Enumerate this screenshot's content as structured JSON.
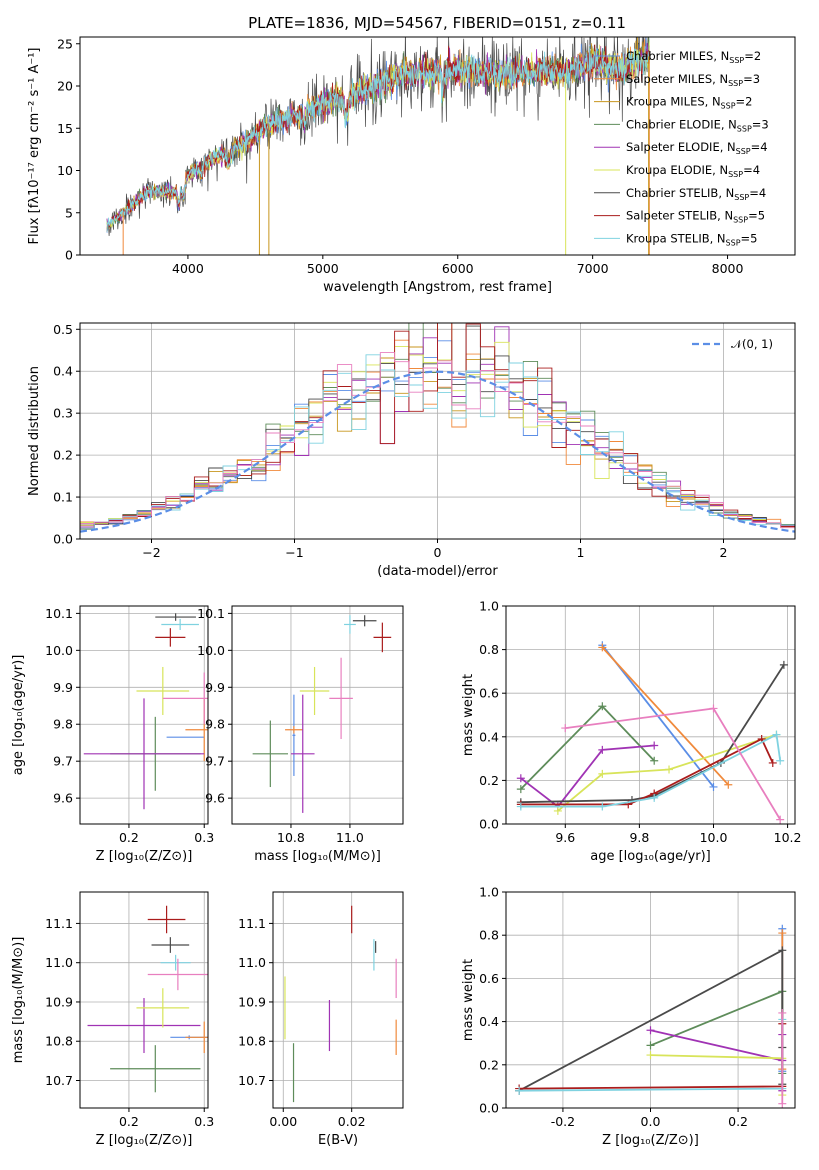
{
  "title": "PLATE=1836, MJD=54567, FIBERID=0151, z=0.11",
  "colors": [
    "#5b8ee6",
    "#f08a3c",
    "#c8961e",
    "#5e8c5a",
    "#a033b4",
    "#d8e45a",
    "#4a4a4a",
    "#aa1c1c",
    "#7fd2e0",
    "#e87fbf"
  ],
  "models": [
    {
      "lab": "Chabrier MILES, N",
      "sub": "SSP",
      "val": "=2"
    },
    {
      "lab": "Salpeter MILES, N",
      "sub": "SSP",
      "val": "=3"
    },
    {
      "lab": "Kroupa MILES, N",
      "sub": "SSP",
      "val": "=2"
    },
    {
      "lab": "Chabrier ELODIE, N",
      "sub": "SSP",
      "val": "=3"
    },
    {
      "lab": "Salpeter ELODIE, N",
      "sub": "SSP",
      "val": "=4"
    },
    {
      "lab": "Kroupa ELODIE, N",
      "sub": "SSP",
      "val": "=4"
    },
    {
      "lab": "Chabrier STELIB, N",
      "sub": "SSP",
      "val": "=4"
    },
    {
      "lab": "Salpeter STELIB, N",
      "sub": "SSP",
      "val": "=5"
    },
    {
      "lab": "Kroupa STELIB, N",
      "sub": "SSP",
      "val": "=5"
    }
  ],
  "chart_data": [
    {
      "type": "line",
      "name": "spectrum",
      "xlabel": "wavelength [Angstrom, rest frame]",
      "ylabel": "Flux [fλ10⁻¹⁷ erg cm⁻² s⁻¹ A⁻¹]",
      "xlim": [
        3200,
        8500
      ],
      "ylim": [
        0,
        25.8
      ],
      "xticks": [
        4000,
        5000,
        6000,
        7000,
        8000
      ],
      "yticks": [
        0,
        5,
        10,
        15,
        20,
        25
      ],
      "continuum": {
        "x": [
          3400,
          3500,
          3700,
          3900,
          4000,
          4200,
          4400,
          4600,
          4800,
          5000,
          5200,
          5400,
          5600,
          5800,
          6000,
          6200,
          6400,
          6600,
          6800,
          7000,
          7200,
          7400
        ],
        "y": [
          3.5,
          4.8,
          7.5,
          7.5,
          9.5,
          11.5,
          13.0,
          15.5,
          16.5,
          18.0,
          19.0,
          20.0,
          21.5,
          21.5,
          22.0,
          21.5,
          21.5,
          22.0,
          21.5,
          23.0,
          22.0,
          23.5
        ]
      }
    },
    {
      "type": "histogram",
      "name": "residuals",
      "xlabel": "(data-model)/error",
      "ylabel": "Normed distribution",
      "xlim": [
        -2.5,
        2.5
      ],
      "ylim": [
        0,
        0.515
      ],
      "xticks": [
        -2,
        -1,
        0,
        1,
        2
      ],
      "yticks": [
        0.0,
        0.1,
        0.2,
        0.3,
        0.4,
        0.5
      ],
      "legend": "𝒩(0, 1)",
      "bin_width": 0.1
    },
    {
      "type": "scatter",
      "name": "age-vs-Z",
      "xlabel": "Z [log₁₀(Z/Z⊙)]",
      "ylabel": "age  [log₁₀(age/yr)]",
      "xlim": [
        0.135,
        0.305
      ],
      "ylim": [
        9.53,
        10.12
      ],
      "xticks": [
        0.2,
        0.3
      ],
      "yticks": [
        9.6,
        9.7,
        9.8,
        9.9,
        10.0,
        10.1
      ],
      "points": [
        {
          "m": 0,
          "x": 0.275,
          "y": 9.765,
          "ex": 0.025,
          "ey": 0.0
        },
        {
          "m": 1,
          "x": 0.3,
          "y": 9.785,
          "ex": 0.025,
          "ey": 0.085
        },
        {
          "m": 3,
          "x": 0.235,
          "y": 9.72,
          "ex": 0.06,
          "ey": 0.1
        },
        {
          "m": 4,
          "x": 0.22,
          "y": 9.72,
          "ex": 0.08,
          "ey": 0.15
        },
        {
          "m": 5,
          "x": 0.245,
          "y": 9.89,
          "ex": 0.035,
          "ey": 0.065
        },
        {
          "m": 6,
          "x": 0.262,
          "y": 10.09,
          "ex": 0.027,
          "ey": 0.01
        },
        {
          "m": 7,
          "x": 0.255,
          "y": 10.035,
          "ex": 0.02,
          "ey": 0.025
        },
        {
          "m": 8,
          "x": 0.268,
          "y": 10.07,
          "ex": 0.025,
          "ey": 0.015
        },
        {
          "m": 9,
          "x": 0.3,
          "y": 9.87,
          "ex": 0.055,
          "ey": 0.07
        }
      ]
    },
    {
      "type": "scatter",
      "name": "age-vs-mass",
      "xlabel": "mass [log₁₀(M/M⊙)]",
      "ylabel": "",
      "xlim": [
        10.6,
        11.18
      ],
      "ylim": [
        9.53,
        10.12
      ],
      "xticks": [
        10.8,
        11.0
      ],
      "yticks": [
        9.6,
        9.7,
        9.8,
        9.9,
        10.0,
        10.1
      ],
      "points": [
        {
          "m": 0,
          "x": 10.81,
          "y": 9.77,
          "ex": 0.005,
          "ey": 0.11
        },
        {
          "m": 1,
          "x": 10.81,
          "y": 9.785,
          "ex": 0.03,
          "ey": 0.01
        },
        {
          "m": 3,
          "x": 10.73,
          "y": 9.72,
          "ex": 0.06,
          "ey": 0.09
        },
        {
          "m": 4,
          "x": 10.84,
          "y": 9.72,
          "ex": 0.04,
          "ey": 0.16
        },
        {
          "m": 5,
          "x": 10.88,
          "y": 9.89,
          "ex": 0.05,
          "ey": 0.065
        },
        {
          "m": 6,
          "x": 11.05,
          "y": 10.08,
          "ex": 0.04,
          "ey": 0.015
        },
        {
          "m": 7,
          "x": 11.11,
          "y": 10.035,
          "ex": 0.03,
          "ey": 0.04
        },
        {
          "m": 8,
          "x": 11.0,
          "y": 10.07,
          "ex": 0.02,
          "ey": 0.025
        },
        {
          "m": 9,
          "x": 10.97,
          "y": 9.87,
          "ex": 0.04,
          "ey": 0.11
        }
      ]
    },
    {
      "type": "line",
      "name": "weight-vs-age",
      "xlabel": "age  [log₁₀(age/yr)]",
      "ylabel": "mass weight",
      "xlim": [
        9.44,
        10.22
      ],
      "ylim": [
        0,
        1
      ],
      "xticks": [
        9.6,
        9.8,
        10.0,
        10.2
      ],
      "yticks": [
        0.0,
        0.2,
        0.4,
        0.6,
        0.8,
        1.0
      ],
      "series": [
        {
          "m": 0,
          "x": [
            9.7,
            10.0
          ],
          "y": [
            0.82,
            0.17
          ]
        },
        {
          "m": 1,
          "x": [
            9.7,
            10.04
          ],
          "y": [
            0.81,
            0.18
          ]
        },
        {
          "m": 3,
          "x": [
            9.48,
            9.7,
            9.84
          ],
          "y": [
            0.16,
            0.54,
            0.29
          ]
        },
        {
          "m": 4,
          "x": [
            9.48,
            9.58,
            9.7,
            9.84
          ],
          "y": [
            0.21,
            0.08,
            0.34,
            0.36
          ]
        },
        {
          "m": 5,
          "x": [
            9.58,
            9.7,
            9.88,
            10.17
          ],
          "y": [
            0.06,
            0.23,
            0.25,
            0.41
          ]
        },
        {
          "m": 6,
          "x": [
            9.48,
            9.78,
            9.84,
            10.02,
            10.19
          ],
          "y": [
            0.1,
            0.11,
            0.13,
            0.28,
            0.73
          ]
        },
        {
          "m": 7,
          "x": [
            9.48,
            9.77,
            9.84,
            10.13,
            10.16
          ],
          "y": [
            0.09,
            0.09,
            0.14,
            0.39,
            0.28
          ]
        },
        {
          "m": 8,
          "x": [
            9.48,
            9.7,
            9.84,
            10.17,
            10.18
          ],
          "y": [
            0.08,
            0.08,
            0.12,
            0.41,
            0.29
          ]
        },
        {
          "m": 9,
          "x": [
            9.6,
            10.0,
            10.18
          ],
          "y": [
            0.44,
            0.53,
            0.02
          ]
        }
      ]
    },
    {
      "type": "scatter",
      "name": "mass-vs-Z",
      "xlabel": "Z [log₁₀(Z/Z⊙)]",
      "ylabel": "mass [log₁₀(M/M⊙)]",
      "xlim": [
        0.135,
        0.305
      ],
      "ylim": [
        10.63,
        11.18
      ],
      "xticks": [
        0.2,
        0.3
      ],
      "yticks": [
        10.7,
        10.8,
        10.9,
        11.0,
        11.1
      ],
      "points": [
        {
          "m": 0,
          "x": 0.28,
          "y": 10.81,
          "ex": 0.025,
          "ey": 0.005
        },
        {
          "m": 1,
          "x": 0.3,
          "y": 10.81,
          "ex": 0.025,
          "ey": 0.04
        },
        {
          "m": 3,
          "x": 0.235,
          "y": 10.73,
          "ex": 0.06,
          "ey": 0.06
        },
        {
          "m": 4,
          "x": 0.22,
          "y": 10.84,
          "ex": 0.075,
          "ey": 0.07
        },
        {
          "m": 5,
          "x": 0.245,
          "y": 10.885,
          "ex": 0.035,
          "ey": 0.05
        },
        {
          "m": 6,
          "x": 0.255,
          "y": 11.045,
          "ex": 0.025,
          "ey": 0.02
        },
        {
          "m": 7,
          "x": 0.25,
          "y": 11.11,
          "ex": 0.025,
          "ey": 0.035
        },
        {
          "m": 8,
          "x": 0.262,
          "y": 11.0,
          "ex": 0.02,
          "ey": 0.02
        },
        {
          "m": 9,
          "x": 0.265,
          "y": 10.97,
          "ex": 0.04,
          "ey": 0.04
        }
      ]
    },
    {
      "type": "scatter",
      "name": "mass-vs-EBV",
      "xlabel": "E(B-V)",
      "ylabel": "",
      "xlim": [
        -0.003,
        0.035
      ],
      "ylim": [
        10.63,
        11.18
      ],
      "xticks": [
        0.0,
        0.02
      ],
      "yticks": [
        10.7,
        10.8,
        10.9,
        11.0,
        11.1
      ],
      "points": [
        {
          "m": 1,
          "x": 0.033,
          "y": 10.81,
          "ex": 0,
          "ey": 0.045
        },
        {
          "m": 3,
          "x": 0.003,
          "y": 10.72,
          "ex": 0,
          "ey": 0.075
        },
        {
          "m": 4,
          "x": 0.0135,
          "y": 10.84,
          "ex": 0,
          "ey": 0.065
        },
        {
          "m": 5,
          "x": 0.0005,
          "y": 10.885,
          "ex": 0,
          "ey": 0.08
        },
        {
          "m": 7,
          "x": 0.02,
          "y": 11.11,
          "ex": 0,
          "ey": 0.035
        },
        {
          "m": 8,
          "x": 0.0265,
          "y": 11.02,
          "ex": 0,
          "ey": 0.04
        },
        {
          "m": 6,
          "x": 0.027,
          "y": 11.04,
          "ex": 0,
          "ey": 0.015
        },
        {
          "m": 9,
          "x": 0.033,
          "y": 10.96,
          "ex": 0,
          "ey": 0.05
        }
      ]
    },
    {
      "type": "line",
      "name": "weight-vs-Z",
      "xlabel": "Z [log₁₀(Z/Z⊙)]",
      "ylabel": "mass weight",
      "xlim": [
        -0.33,
        0.33
      ],
      "ylim": [
        0,
        1
      ],
      "xticks": [
        -0.2,
        0.0,
        0.2
      ],
      "yticks": [
        0.0,
        0.2,
        0.4,
        0.6,
        0.8,
        1.0
      ],
      "series": [
        {
          "m": 0,
          "x": [
            0.301,
            0.301
          ],
          "y": [
            0.83,
            0.17
          ]
        },
        {
          "m": 1,
          "x": [
            0.301,
            0.301
          ],
          "y": [
            0.81,
            0.18
          ]
        },
        {
          "m": 3,
          "x": [
            0.0,
            0.301,
            0.301
          ],
          "y": [
            0.29,
            0.54,
            0.16
          ]
        },
        {
          "m": 4,
          "x": [
            0.0,
            0.301,
            0.301,
            0.301
          ],
          "y": [
            0.36,
            0.22,
            0.08,
            0.34
          ]
        },
        {
          "m": 5,
          "x": [
            0.0,
            0.301,
            0.301
          ],
          "y": [
            0.245,
            0.23,
            0.06
          ]
        },
        {
          "m": 6,
          "x": [
            -0.3,
            0.301,
            0.301,
            0.301
          ],
          "y": [
            0.08,
            0.73,
            0.28,
            0.11
          ]
        },
        {
          "m": 7,
          "x": [
            -0.3,
            0.301,
            0.301
          ],
          "y": [
            0.09,
            0.1,
            0.39
          ]
        },
        {
          "m": 8,
          "x": [
            -0.3,
            0.301,
            0.301
          ],
          "y": [
            0.08,
            0.09,
            0.41
          ]
        },
        {
          "m": 9,
          "x": [
            0.301,
            0.301
          ],
          "y": [
            0.44,
            0.02
          ]
        }
      ]
    }
  ]
}
